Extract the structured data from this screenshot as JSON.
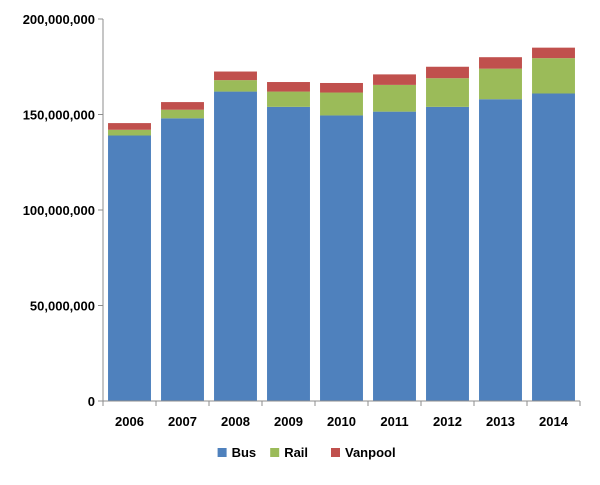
{
  "chart_data": {
    "type": "bar",
    "stacked": true,
    "categories": [
      "2006",
      "2007",
      "2008",
      "2009",
      "2010",
      "2011",
      "2012",
      "2013",
      "2014"
    ],
    "series": [
      {
        "name": "Bus",
        "color": "#4f81bd",
        "values": [
          139000000,
          148000000,
          162000000,
          154000000,
          149500000,
          151500000,
          154000000,
          158000000,
          161000000
        ]
      },
      {
        "name": "Rail",
        "color": "#9bbb59",
        "values": [
          3000000,
          4500000,
          6000000,
          8000000,
          12000000,
          14000000,
          15000000,
          16000000,
          18500000
        ]
      },
      {
        "name": "Vanpool",
        "color": "#c0504d",
        "values": [
          3500000,
          4000000,
          4500000,
          5000000,
          5000000,
          5500000,
          6000000,
          6000000,
          5500000
        ]
      }
    ],
    "ylim": [
      0,
      200000000
    ],
    "yticks": [
      0,
      50000000,
      100000000,
      150000000,
      200000000
    ],
    "ytick_labels": [
      "0",
      "50,000,000",
      "100,000,000",
      "150,000,000",
      "200,000,000"
    ],
    "grid": false,
    "legend": "bottom"
  }
}
